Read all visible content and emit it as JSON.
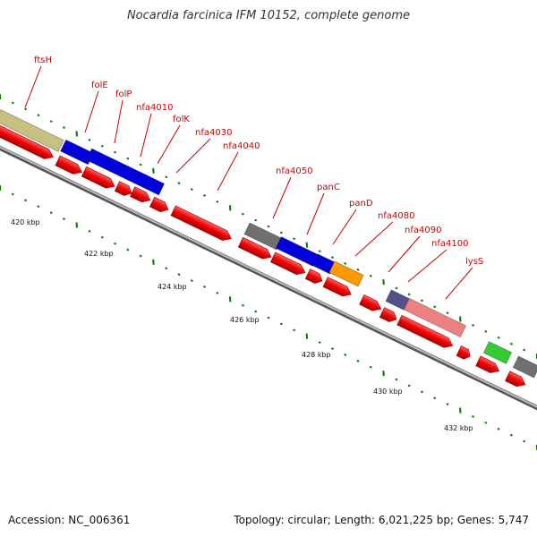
{
  "title": "Nocardia farcinica IFM 10152, complete genome",
  "footer": {
    "accession": "Accession: NC_006361",
    "summary": "Topology: circular; Length: 6,021,225 bp; Genes: 5,747"
  },
  "genome_map": {
    "scale_ticks": [
      "420 kbp",
      "422 kbp",
      "424 kbp",
      "426 kbp",
      "428 kbp",
      "430 kbp",
      "432 kbp"
    ],
    "gene_labels": [
      "ftsH",
      "folE",
      "folP",
      "nfa4010",
      "folK",
      "nfa4030",
      "nfa4040",
      "nfa4050",
      "panC",
      "panD",
      "nfa4080",
      "nfa4090",
      "nfa4100",
      "lysS"
    ],
    "colors": {
      "backbone": "#888888",
      "cds": "#ee0000",
      "olive": "#c8c080",
      "blue": "#0000dd",
      "gray": "#707070",
      "orange": "#ff9900",
      "purple": "#55508a",
      "pink": "#ee8080",
      "green": "#33cc33",
      "tick": "#007700",
      "label": "#cc0000"
    }
  }
}
